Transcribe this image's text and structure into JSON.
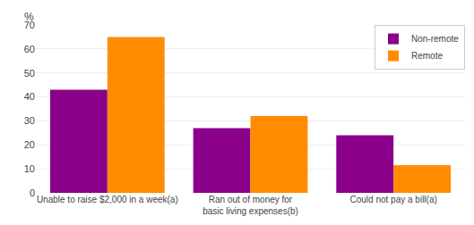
{
  "chart_data": {
    "type": "bar",
    "ylabel": "%",
    "categories": [
      "Unable to raise $2,000 in a week(a)",
      "Ran out of money for\nbasic living expenses(b)",
      "Could not pay a bill(a)"
    ],
    "series": [
      {
        "name": "Non-remote",
        "color": "#8B008B",
        "values": [
          43,
          27,
          24
        ]
      },
      {
        "name": "Remote",
        "color": "#FF8C00",
        "values": [
          65,
          32,
          11.5
        ]
      }
    ],
    "ylim": [
      0,
      70
    ],
    "yticks": [
      0,
      10,
      20,
      30,
      40,
      50,
      60,
      70
    ],
    "grid": true,
    "legend": "upper right"
  }
}
